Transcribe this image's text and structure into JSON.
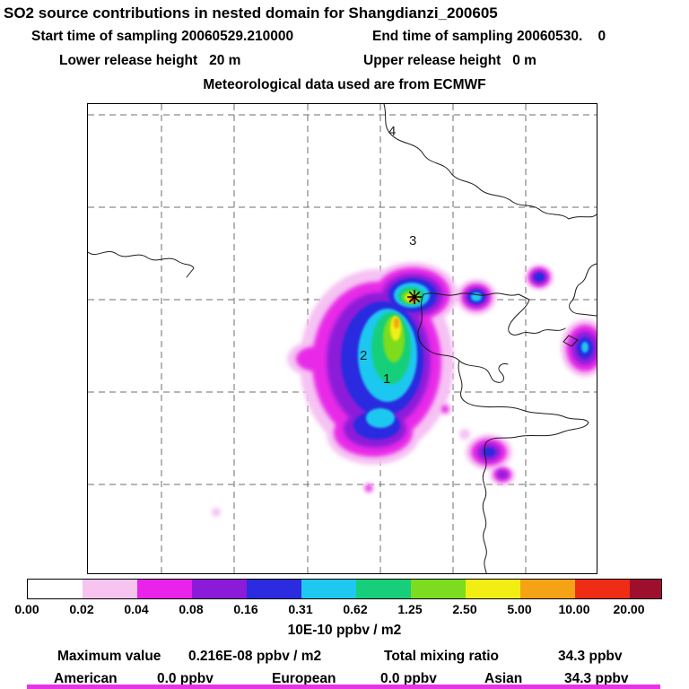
{
  "title": "SO2 source contributions in nested domain for Shangdianzi_200605",
  "header": {
    "start_sampling": "Start time of sampling 20060529.210000",
    "end_sampling": "End time of sampling 20060530.    0",
    "lower_release": "Lower release height   20 m",
    "upper_release": "Upper release height   0 m",
    "met_data": "Meteorological data used are from ECMWF"
  },
  "map": {
    "region_labels": [
      {
        "text": "1"
      },
      {
        "text": "2"
      },
      {
        "text": "3"
      },
      {
        "text": "4"
      }
    ],
    "marker": "release-site-asterisk"
  },
  "colorbar": {
    "unit": "10E-10 ppbv / m2",
    "tick_labels": [
      "0.00",
      "0.02",
      "0.04",
      "0.08",
      "0.16",
      "0.31",
      "0.62",
      "1.25",
      "2.50",
      "5.00",
      "10.00",
      "20.00"
    ],
    "segment_colors": [
      "#ffffff",
      "#f7c3ef",
      "#e923e9",
      "#8c1ad9",
      "#2b2be0",
      "#1fc8f0",
      "#17cf7a",
      "#7ddc1f",
      "#f2ee14",
      "#f5a314",
      "#ef2c14",
      "#9e0f2e"
    ]
  },
  "stats": {
    "max_label": "Maximum value",
    "max_value": "0.216E-08 ppbv / m2",
    "total_label": "Total mixing ratio",
    "total_value": "34.3 ppbv",
    "regions": [
      {
        "name": "American",
        "value": "0.0 ppbv"
      },
      {
        "name": "European",
        "value": "0.0 ppbv"
      },
      {
        "name": "Asian",
        "value": "34.3 ppbv"
      }
    ]
  },
  "chart_data": {
    "type": "heatmap",
    "title": "SO2 source contributions in nested domain for Shangdianzi_200605",
    "station": "Shangdianzi",
    "period": "200605",
    "sampling_start": "20060529.210000",
    "sampling_end": "20060530.0",
    "release_height_m": {
      "lower": 20,
      "upper": 0
    },
    "meteorology": "ECMWF",
    "colorbar_levels": [
      0.0,
      0.02,
      0.04,
      0.08,
      0.16,
      0.31,
      0.62,
      1.25,
      2.5,
      5.0,
      10.0,
      20.0
    ],
    "colorbar_unit": "10E-10 ppbv / m2",
    "maximum_value_ppbv_m2": "0.216E-08",
    "total_mixing_ratio_ppbv": 34.3,
    "contributions_ppbv": {
      "American": 0.0,
      "European": 0.0,
      "Asian": 34.3
    },
    "map_region_markers": [
      "1",
      "2",
      "3",
      "4"
    ],
    "legend_position": "bottom",
    "grid": "dashed"
  }
}
